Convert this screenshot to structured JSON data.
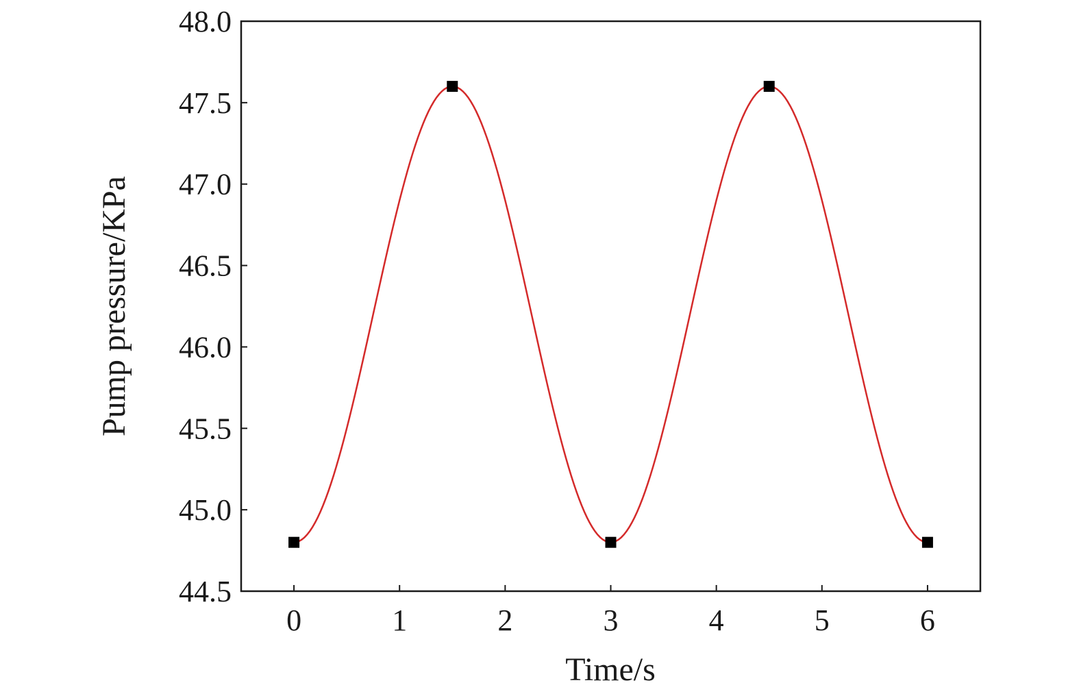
{
  "chart_data": {
    "type": "line",
    "xlabel": "Time/s",
    "ylabel": "Pump pressure/KPa",
    "xlim": [
      -0.5,
      6.5
    ],
    "ylim": [
      44.5,
      48.0
    ],
    "xticks": [
      "0",
      "1",
      "2",
      "3",
      "4",
      "5",
      "6"
    ],
    "yticks": [
      "44.5",
      "45.0",
      "45.5",
      "46.0",
      "46.5",
      "47.0",
      "47.5",
      "48.0"
    ],
    "grid": false,
    "legend": "none",
    "series": [
      {
        "points": [
          {
            "x": 0,
            "y": 44.8
          },
          {
            "x": 1.5,
            "y": 47.6
          },
          {
            "x": 3,
            "y": 44.8
          },
          {
            "x": 4.5,
            "y": 47.6
          },
          {
            "x": 6,
            "y": 44.8
          }
        ],
        "marker": "square",
        "marker_color": "#000000",
        "line_color": "#d42a2a",
        "line_style": "smooth"
      }
    ]
  }
}
